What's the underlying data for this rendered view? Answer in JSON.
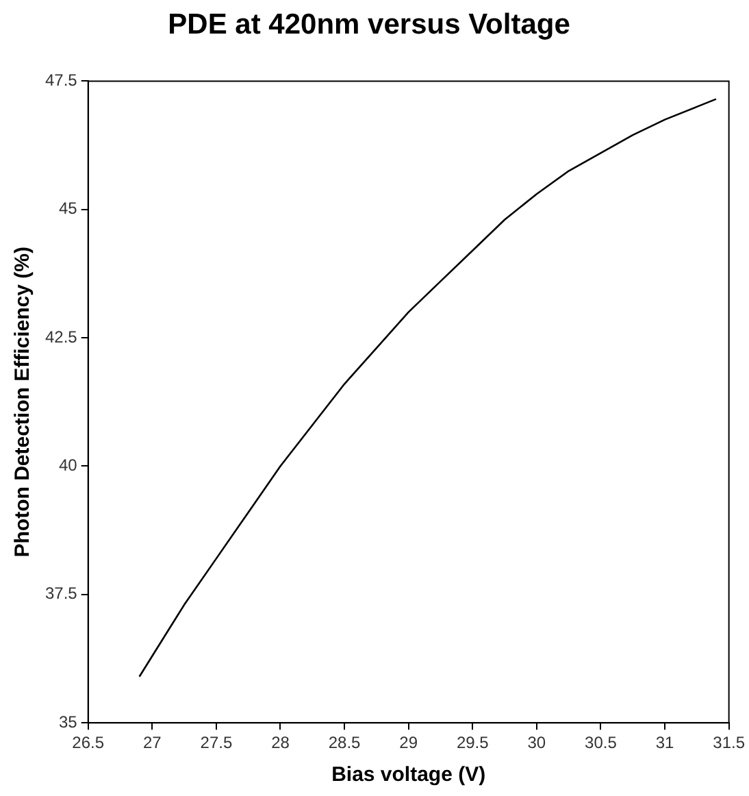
{
  "chart_data": {
    "type": "line",
    "title": "PDE at 420nm versus Voltage",
    "xlabel": "Bias voltage (V)",
    "ylabel": "Photon Detection Efficiency (%)",
    "x": [
      26.9,
      27,
      27.25,
      27.5,
      27.75,
      28,
      28.25,
      28.5,
      28.75,
      29,
      29.25,
      29.5,
      29.75,
      30,
      30.25,
      30.5,
      30.75,
      31,
      31.25,
      31.4
    ],
    "series": [
      {
        "color": "#000000",
        "values": [
          35.9,
          36.3,
          37.3,
          38.2,
          39.1,
          40.0,
          40.8,
          41.6,
          42.3,
          43.0,
          43.6,
          44.2,
          44.8,
          45.3,
          45.75,
          46.1,
          46.45,
          46.75,
          47.0,
          47.15
        ]
      }
    ],
    "xlim": [
      26.5,
      31.5
    ],
    "xticks": [
      26.5,
      27,
      27.5,
      28,
      28.5,
      29,
      29.5,
      30,
      30.5,
      31,
      31.5
    ],
    "ylim": [
      35,
      47.5
    ],
    "yticks": [
      35,
      37.5,
      40,
      42.5,
      45,
      47.5
    ],
    "grid": false,
    "legend": false,
    "marker": "none",
    "line_style": "solid"
  }
}
